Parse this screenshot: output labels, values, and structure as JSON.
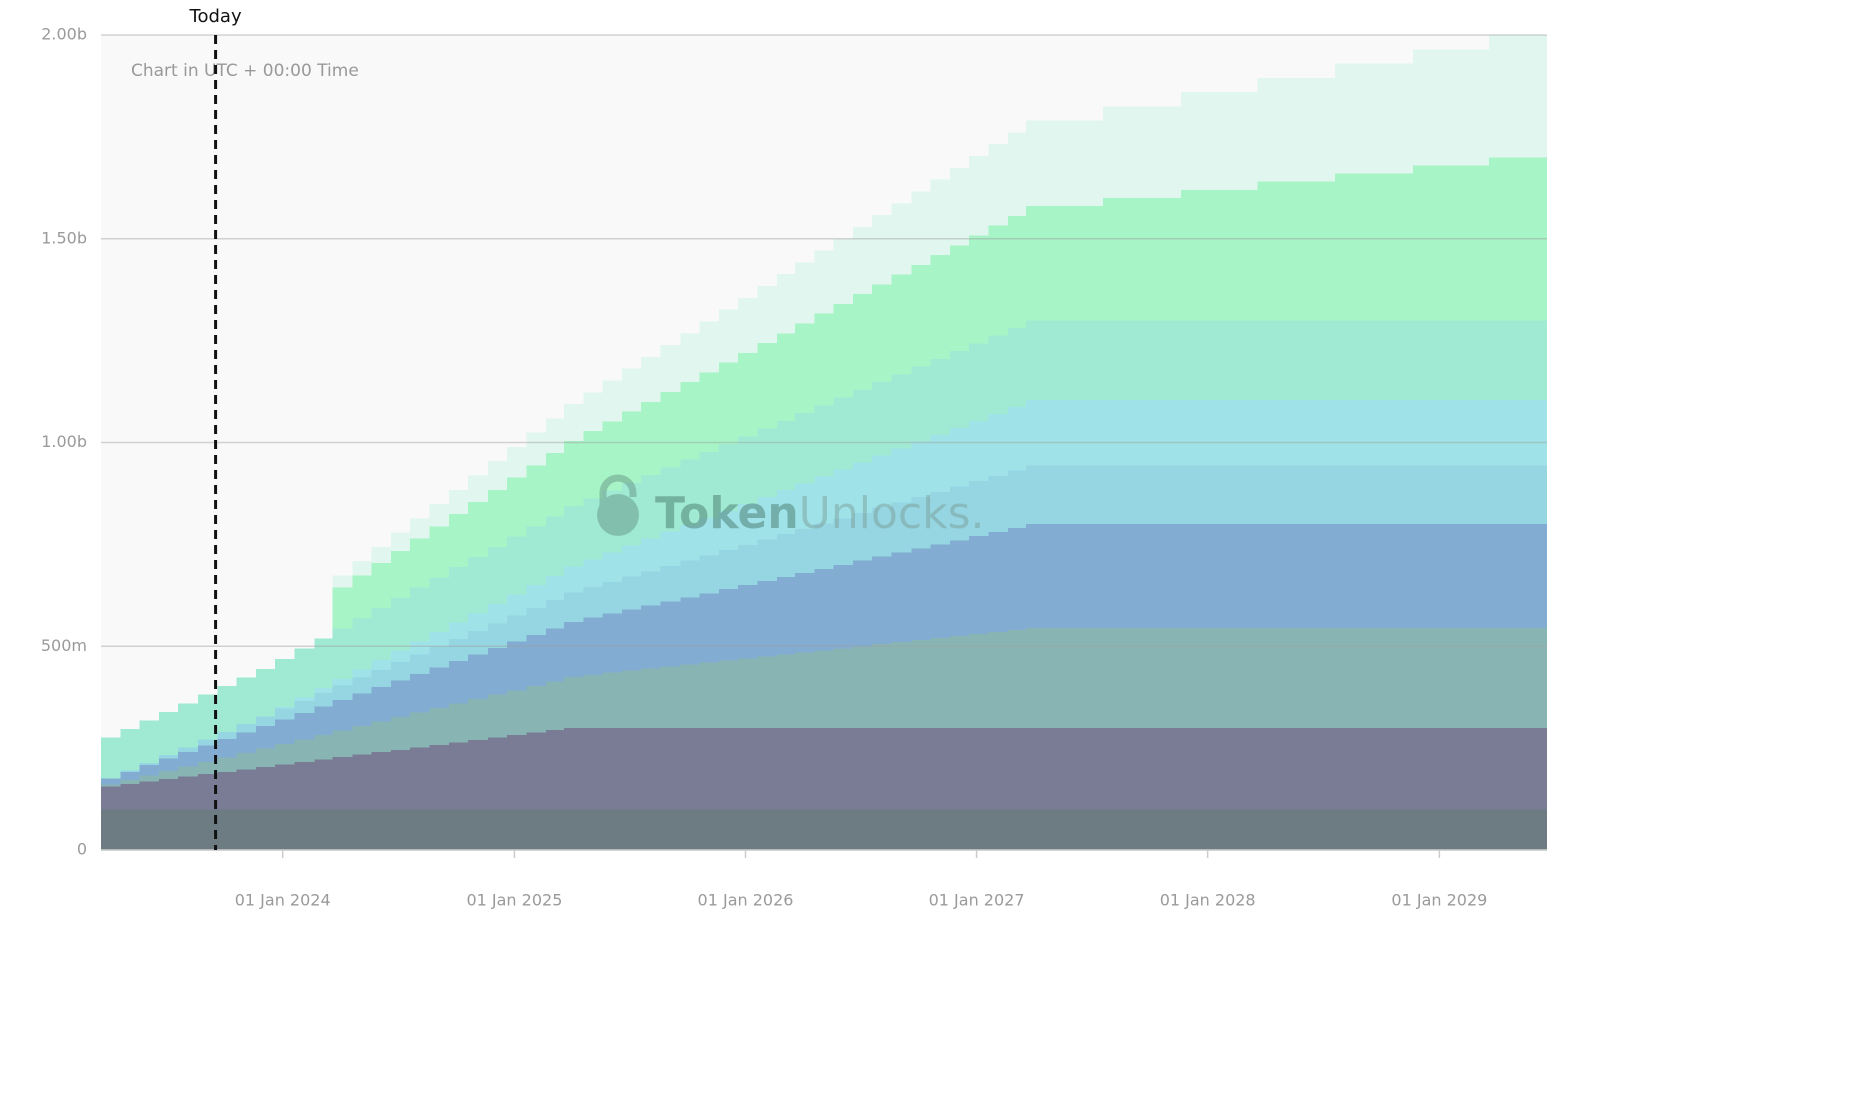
{
  "chart_data": {
    "type": "stacked_step_area",
    "subtitle": "Chart in UTC + 00:00 Time",
    "annotation": {
      "x": "2023-09-17",
      "label": "Today"
    },
    "watermark": {
      "bold": "Token",
      "light": "Unlocks."
    },
    "x": [
      "2023-03-20",
      "2023-04-20",
      "2023-05-20",
      "2023-06-20",
      "2023-07-20",
      "2023-08-20",
      "2023-09-20",
      "2023-10-20",
      "2023-11-20",
      "2023-12-20",
      "2024-01-20",
      "2024-02-20",
      "2024-03-20",
      "2024-04-20",
      "2024-05-20",
      "2024-06-20",
      "2024-07-20",
      "2024-08-20",
      "2024-09-20",
      "2024-10-20",
      "2024-11-20",
      "2024-12-20",
      "2025-01-20",
      "2025-02-20",
      "2025-03-20",
      "2025-04-20",
      "2025-05-20",
      "2025-06-20",
      "2025-07-20",
      "2025-08-20",
      "2025-09-20",
      "2025-10-20",
      "2025-11-20",
      "2025-12-20",
      "2026-01-20",
      "2026-02-20",
      "2026-03-20",
      "2026-04-20",
      "2026-05-20",
      "2026-06-20",
      "2026-07-20",
      "2026-08-20",
      "2026-09-20",
      "2026-10-20",
      "2026-11-20",
      "2026-12-20",
      "2027-01-20",
      "2027-02-20",
      "2027-03-20",
      "2027-07-20",
      "2027-11-20",
      "2028-03-20",
      "2028-07-20",
      "2028-11-20",
      "2029-03-20"
    ],
    "xlim": [
      "2023-03-20",
      "2029-06-20"
    ],
    "xticks": [
      {
        "value": "2024-01-01",
        "label": "01 Jan 2024"
      },
      {
        "value": "2025-01-01",
        "label": "01 Jan 2025"
      },
      {
        "value": "2026-01-01",
        "label": "01 Jan 2026"
      },
      {
        "value": "2027-01-01",
        "label": "01 Jan 2027"
      },
      {
        "value": "2028-01-01",
        "label": "01 Jan 2028"
      },
      {
        "value": "2029-01-01",
        "label": "01 Jan 2029"
      }
    ],
    "ylim": [
      0,
      2000000000.0
    ],
    "yticks": [
      0,
      {
        "value": 500000000.0,
        "label": "500m"
      },
      {
        "value": 1000000000.0,
        "label": "1.00b"
      },
      {
        "value": 1500000000.0,
        "label": "1.50b"
      },
      {
        "value": 2000000000.0,
        "label": "2.00b"
      }
    ],
    "grid": true,
    "series": [
      {
        "color": "#6c7c82",
        "values": [
          100000000.0,
          100000000.0,
          100000000.0,
          100000000.0,
          100000000.0,
          100000000.0,
          100000000.0,
          100000000.0,
          100000000.0,
          100000000.0,
          100000000.0,
          100000000.0,
          100000000.0,
          100000000.0,
          100000000.0,
          100000000.0,
          100000000.0,
          100000000.0,
          100000000.0,
          100000000.0,
          100000000.0,
          100000000.0,
          100000000.0,
          100000000.0,
          100000000.0,
          100000000.0,
          100000000.0,
          100000000.0,
          100000000.0,
          100000000.0,
          100000000.0,
          100000000.0,
          100000000.0,
          100000000.0,
          100000000.0,
          100000000.0,
          100000000.0,
          100000000.0,
          100000000.0,
          100000000.0,
          100000000.0,
          100000000.0,
          100000000.0,
          100000000.0,
          100000000.0,
          100000000.0,
          100000000.0,
          100000000.0,
          100000000.0,
          100000000.0,
          100000000.0,
          100000000.0,
          100000000.0,
          100000000.0,
          100000000.0
        ]
      },
      {
        "color": "#7a7c96",
        "values": [
          56000000.0,
          62000000.0,
          68000000.0,
          74000000.0,
          80000000.0,
          86000000.0,
          92000000.0,
          98000000.0,
          104000000.0,
          110000000.0,
          116000000.0,
          122000000.0,
          128000000.0,
          134000000.0,
          140000000.0,
          146000000.0,
          152000000.0,
          158000000.0,
          164000000.0,
          170000000.0,
          176000000.0,
          182000000.0,
          188000000.0,
          194000000.0,
          200000000.0,
          200000000.0,
          200000000.0,
          200000000.0,
          200000000.0,
          200000000.0,
          200000000.0,
          200000000.0,
          200000000.0,
          200000000.0,
          200000000.0,
          200000000.0,
          200000000.0,
          200000000.0,
          200000000.0,
          200000000.0,
          200000000.0,
          200000000.0,
          200000000.0,
          200000000.0,
          200000000.0,
          200000000.0,
          200000000.0,
          200000000.0,
          200000000.0,
          200000000.0,
          200000000.0,
          200000000.0,
          200000000.0,
          200000000.0,
          200000000.0
        ]
      },
      {
        "color": "#88b4b4",
        "values": [
          5000000.0,
          10000000.0,
          15000000.0,
          20000000.0,
          25000000.0,
          30000000.0,
          35000000.0,
          40000000.0,
          45000000.0,
          50000000.0,
          55000000.0,
          60000000.0,
          65000000.0,
          70000000.0,
          75000000.0,
          80000000.0,
          85000000.0,
          90000000.0,
          95000000.0,
          100000000.0,
          105000000.0,
          110000000.0,
          115000000.0,
          120000000.0,
          125000000.0,
          130000000.0,
          135000000.0,
          140000000.0,
          145000000.0,
          150000000.0,
          155000000.0,
          160000000.0,
          165000000.0,
          170000000.0,
          175000000.0,
          180000000.0,
          185000000.0,
          190000000.0,
          195000000.0,
          200000000.0,
          205000000.0,
          210000000.0,
          215000000.0,
          220000000.0,
          225000000.0,
          230000000.0,
          235000000.0,
          240000000.0,
          245000000.0,
          245000000.0,
          245000000.0,
          245000000.0,
          245000000.0,
          245000000.0,
          245000000.0
        ]
      },
      {
        "color": "#82acd2",
        "values": [
          15000000.0,
          20000000.0,
          25000000.0,
          30000000.0,
          35000000.0,
          40000000.0,
          45000000.0,
          50000000.0,
          55000000.0,
          60000000.0,
          65000000.0,
          70000000.0,
          75000000.0,
          80000000.0,
          85000000.0,
          90000000.0,
          95000000.0,
          100000000.0,
          105000000.0,
          110000000.0,
          115000000.0,
          120000000.0,
          125000000.0,
          130000000.0,
          135000000.0,
          140000000.0,
          145000000.0,
          150000000.0,
          155000000.0,
          160000000.0,
          165000000.0,
          170000000.0,
          175000000.0,
          180000000.0,
          185000000.0,
          190000000.0,
          195000000.0,
          200000000.0,
          205000000.0,
          210000000.0,
          215000000.0,
          220000000.0,
          225000000.0,
          230000000.0,
          235000000.0,
          240000000.0,
          245000000.0,
          250000000.0,
          255000000.0,
          255000000.0,
          255000000.0,
          255000000.0,
          255000000.0,
          255000000.0,
          255000000.0
        ]
      },
      {
        "color": "#95d6e2",
        "values": [
          0,
          3000000.0,
          6000000.0,
          9000000.0,
          12000000.0,
          15000000.0,
          18000000.0,
          21000000.0,
          24000000.0,
          27000000.0,
          30000000.0,
          33000000.0,
          36000000.0,
          39000000.0,
          42000000.0,
          45000000.0,
          48000000.0,
          51000000.0,
          54000000.0,
          57000000.0,
          60000000.0,
          63000000.0,
          66000000.0,
          69000000.0,
          72000000.0,
          75000000.0,
          78000000.0,
          81000000.0,
          84000000.0,
          87000000.0,
          90000000.0,
          93000000.0,
          96000000.0,
          99000000.0,
          102000000.0,
          105000000.0,
          108000000.0,
          111000000.0,
          114000000.0,
          117000000.0,
          120000000.0,
          123000000.0,
          126000000.0,
          129000000.0,
          132000000.0,
          135000000.0,
          138000000.0,
          141000000.0,
          144000000.0,
          144000000.0,
          144000000.0,
          144000000.0,
          144000000.0,
          144000000.0,
          144000000.0
        ]
      },
      {
        "color": "#9fe3e8",
        "values": [
          0,
          0,
          0,
          0,
          0,
          0,
          0,
          0,
          0,
          4000000.0,
          8000000.0,
          12000000.0,
          16000000.0,
          20000000.0,
          24000000.0,
          28000000.0,
          32000000.0,
          36000000.0,
          40000000.0,
          44000000.0,
          48000000.0,
          52000000.0,
          56000000.0,
          60000000.0,
          64000000.0,
          68000000.0,
          72000000.0,
          76000000.0,
          80000000.0,
          84000000.0,
          88000000.0,
          92000000.0,
          96000000.0,
          100000000.0,
          104000000.0,
          108000000.0,
          112000000.0,
          116000000.0,
          120000000.0,
          124000000.0,
          128000000.0,
          132000000.0,
          136000000.0,
          140000000.0,
          144000000.0,
          148000000.0,
          152000000.0,
          156000000.0,
          160000000.0,
          160000000.0,
          160000000.0,
          160000000.0,
          160000000.0,
          160000000.0,
          160000000.0
        ]
      },
      {
        "color": "#a0ead4",
        "values": [
          100000000.0,
          102000000.0,
          104000000.0,
          106000000.0,
          108000000.0,
          110000000.0,
          112000000.0,
          114000000.0,
          116000000.0,
          118000000.0,
          120000000.0,
          122000000.0,
          124000000.0,
          126000000.0,
          128000000.0,
          130000000.0,
          132000000.0,
          134000000.0,
          136000000.0,
          138000000.0,
          140000000.0,
          142000000.0,
          144000000.0,
          146000000.0,
          148000000.0,
          150000000.0,
          152000000.0,
          154000000.0,
          156000000.0,
          158000000.0,
          160000000.0,
          162000000.0,
          164000000.0,
          166000000.0,
          168000000.0,
          170000000.0,
          172000000.0,
          174000000.0,
          176000000.0,
          178000000.0,
          180000000.0,
          182000000.0,
          184000000.0,
          186000000.0,
          188000000.0,
          190000000.0,
          192000000.0,
          194000000.0,
          196000000.0,
          196000000.0,
          196000000.0,
          196000000.0,
          196000000.0,
          196000000.0,
          196000000.0
        ]
      },
      {
        "color": "#a7f4c6",
        "values": [
          0,
          0,
          0,
          0,
          0,
          0,
          0,
          0,
          0,
          0,
          0,
          0,
          100000000.0,
          105000000.0,
          110000000.0,
          115000000.0,
          120000000.0,
          125000000.0,
          130000000.0,
          135000000.0,
          140000000.0,
          145000000.0,
          150000000.0,
          155000000.0,
          160000000.0,
          165000000.0,
          170000000.0,
          175000000.0,
          180000000.0,
          185000000.0,
          190000000.0,
          195000000.0,
          200000000.0,
          205000000.0,
          210000000.0,
          215000000.0,
          220000000.0,
          225000000.0,
          230000000.0,
          235000000.0,
          240000000.0,
          245000000.0,
          250000000.0,
          255000000.0,
          260000000.0,
          265000000.0,
          270000000.0,
          275000000.0,
          280000000.0,
          300000000.0,
          320000000.0,
          340000000.0,
          360000000.0,
          380000000.0,
          400000000.0
        ]
      },
      {
        "color": "#e0f6ee",
        "values": [
          0,
          0,
          0,
          0,
          0,
          0,
          0,
          0,
          0,
          0,
          0,
          0,
          30000000.0,
          35000000.0,
          40000000.0,
          45000000.0,
          50000000.0,
          55000000.0,
          60000000.0,
          65000000.0,
          70000000.0,
          75000000.0,
          80000000.0,
          85000000.0,
          90000000.0,
          95000000.0,
          100000000.0,
          105000000.0,
          110000000.0,
          115000000.0,
          120000000.0,
          125000000.0,
          130000000.0,
          135000000.0,
          140000000.0,
          145000000.0,
          150000000.0,
          155000000.0,
          160000000.0,
          165000000.0,
          170000000.0,
          175000000.0,
          180000000.0,
          185000000.0,
          190000000.0,
          195000000.0,
          200000000.0,
          205000000.0,
          210000000.0,
          225000000.0,
          240000000.0,
          255000000.0,
          270000000.0,
          285000000.0,
          300000000.0
        ]
      }
    ]
  }
}
